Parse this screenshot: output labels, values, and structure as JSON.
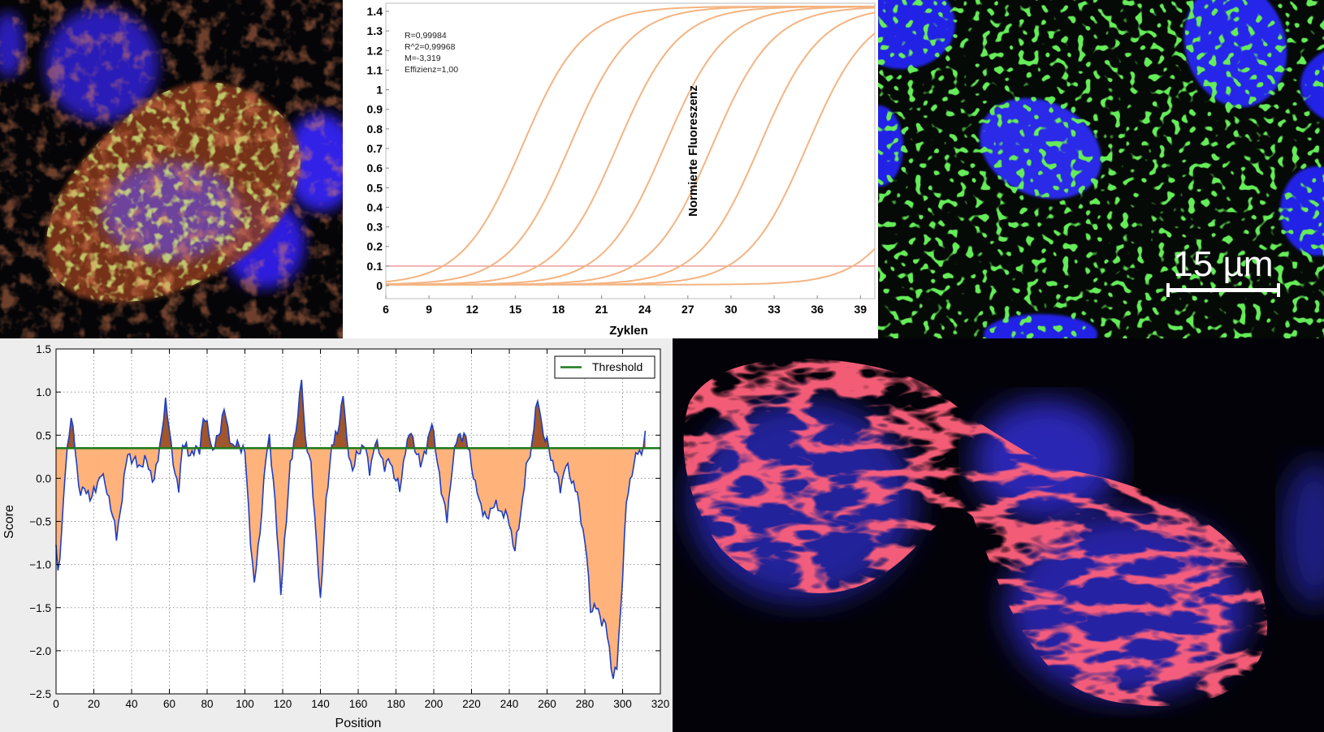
{
  "micrograph_top_left": {
    "colors": {
      "nucleus": "#3a2cf0",
      "actin": "#d0401c",
      "marker": "#9ad030"
    }
  },
  "qpcr_chart": {
    "chart_data": {
      "type": "line",
      "xlabel": "Zyklen",
      "ylabel": "Normierte Fluoreszenz",
      "xlim": [
        6,
        40
      ],
      "ylim": [
        0,
        1.4
      ],
      "xticks": [
        "6",
        "9",
        "12",
        "15",
        "18",
        "21",
        "24",
        "27",
        "30",
        "33",
        "36",
        "39"
      ],
      "yticks": [
        "0",
        "0.1",
        "0.2",
        "0.3",
        "0.4",
        "0.5",
        "0.6",
        "0.7",
        "0.8",
        "0.9",
        "1",
        "1.1",
        "1.2",
        "1.3",
        "1.4"
      ],
      "threshold": 0.1,
      "annotations": [
        "R=0,99984",
        "R^2=0,99968",
        "M=-3,319",
        "Effizienz=1,00"
      ],
      "midpoints": [
        15.5,
        18.8,
        22.1,
        25.4,
        28.7,
        32.0,
        35.3,
        44.0
      ],
      "plateau": 1.42,
      "colors": {
        "curve": "#f4b483",
        "threshold": "#e88a8a"
      }
    }
  },
  "micrograph_top_right": {
    "scale_bar_label": "15 µm",
    "colors": {
      "nucleus": "#2424e6",
      "marker": "#22c818"
    }
  },
  "score_chart": {
    "chart_data": {
      "type": "area",
      "xlabel": "Position",
      "ylabel": "Score",
      "xlim": [
        0,
        320
      ],
      "ylim": [
        -2.5,
        1.5
      ],
      "xticks": [
        "0",
        "20",
        "40",
        "60",
        "80",
        "100",
        "120",
        "140",
        "160",
        "180",
        "200",
        "220",
        "240",
        "260",
        "280",
        "300",
        "320"
      ],
      "yticks": [
        "1.5",
        "1.0",
        "0.5",
        "0.0",
        "−0.5",
        "−1.0",
        "−1.5",
        "−2.0",
        "−2.5"
      ],
      "threshold": 0.35,
      "legend": {
        "label": "Threshold",
        "position": "top-right"
      },
      "grid": true,
      "profile_keypoints": [
        [
          0,
          -0.8
        ],
        [
          1,
          -1.1
        ],
        [
          3,
          -0.6
        ],
        [
          5,
          0.1
        ],
        [
          7,
          0.55
        ],
        [
          8,
          0.75
        ],
        [
          10,
          0.35
        ],
        [
          12,
          -0.1
        ],
        [
          15,
          -0.15
        ],
        [
          18,
          -0.2
        ],
        [
          21,
          -0.15
        ],
        [
          24,
          0.1
        ],
        [
          26,
          -0.1
        ],
        [
          29,
          -0.3
        ],
        [
          32,
          -0.7
        ],
        [
          35,
          -0.2
        ],
        [
          38,
          0.3
        ],
        [
          41,
          0.2
        ],
        [
          44,
          0.15
        ],
        [
          48,
          0.2
        ],
        [
          52,
          -0.05
        ],
        [
          55,
          0.4
        ],
        [
          58,
          0.85
        ],
        [
          60,
          0.6
        ],
        [
          63,
          0.0
        ],
        [
          65,
          -0.1
        ],
        [
          67,
          0.4
        ],
        [
          70,
          0.3
        ],
        [
          73,
          0.3
        ],
        [
          76,
          0.35
        ],
        [
          78,
          0.7
        ],
        [
          81,
          0.55
        ],
        [
          83,
          0.3
        ],
        [
          86,
          0.5
        ],
        [
          89,
          0.8
        ],
        [
          91,
          0.55
        ],
        [
          94,
          0.35
        ],
        [
          97,
          0.4
        ],
        [
          100,
          0.3
        ],
        [
          103,
          -0.7
        ],
        [
          105,
          -1.25
        ],
        [
          108,
          -0.6
        ],
        [
          111,
          0.2
        ],
        [
          113,
          0.5
        ],
        [
          116,
          -0.3
        ],
        [
          119,
          -1.3
        ],
        [
          122,
          -0.5
        ],
        [
          124,
          0.2
        ],
        [
          127,
          0.5
        ],
        [
          130,
          1.2
        ],
        [
          132,
          0.4
        ],
        [
          135,
          0.2
        ],
        [
          137,
          -0.5
        ],
        [
          140,
          -1.4
        ],
        [
          143,
          -0.3
        ],
        [
          146,
          0.4
        ],
        [
          149,
          0.5
        ],
        [
          152,
          1.0
        ],
        [
          154,
          0.4
        ],
        [
          157,
          0.1
        ],
        [
          160,
          0.3
        ],
        [
          163,
          0.4
        ],
        [
          166,
          0.1
        ],
        [
          169,
          0.4
        ],
        [
          172,
          0.3
        ],
        [
          174,
          0.1
        ],
        [
          177,
          0.25
        ],
        [
          179,
          0.0
        ],
        [
          182,
          -0.1
        ],
        [
          185,
          0.3
        ],
        [
          188,
          0.6
        ],
        [
          190,
          0.3
        ],
        [
          193,
          0.2
        ],
        [
          196,
          0.3
        ],
        [
          199,
          0.7
        ],
        [
          201,
          0.3
        ],
        [
          204,
          -0.1
        ],
        [
          207,
          -0.5
        ],
        [
          210,
          0.2
        ],
        [
          213,
          0.5
        ],
        [
          216,
          0.5
        ],
        [
          219,
          0.3
        ],
        [
          222,
          -0.1
        ],
        [
          225,
          -0.3
        ],
        [
          228,
          -0.5
        ],
        [
          231,
          -0.3
        ],
        [
          234,
          -0.35
        ],
        [
          237,
          -0.4
        ],
        [
          240,
          -0.5
        ],
        [
          243,
          -0.85
        ],
        [
          246,
          -0.4
        ],
        [
          249,
          0.1
        ],
        [
          252,
          0.4
        ],
        [
          254,
          0.8
        ],
        [
          256,
          0.85
        ],
        [
          258,
          0.5
        ],
        [
          261,
          0.35
        ],
        [
          264,
          0.1
        ],
        [
          267,
          -0.1
        ],
        [
          270,
          0.15
        ],
        [
          273,
          0.0
        ],
        [
          276,
          -0.2
        ],
        [
          278,
          -0.45
        ],
        [
          281,
          -0.9
        ],
        [
          283,
          -1.5
        ],
        [
          286,
          -1.5
        ],
        [
          288,
          -1.6
        ],
        [
          291,
          -1.7
        ],
        [
          293,
          -2.0
        ],
        [
          295,
          -2.3
        ],
        [
          297,
          -2.2
        ],
        [
          299,
          -1.5
        ],
        [
          302,
          -0.3
        ],
        [
          305,
          0.1
        ],
        [
          308,
          0.3
        ],
        [
          310,
          0.3
        ],
        [
          312,
          0.55
        ]
      ],
      "colors": {
        "line": "#1f3fbf",
        "fill_below": "#ffb27a",
        "fill_above": "#a0562a",
        "threshold": "#1d7a1d"
      }
    }
  },
  "micrograph_bottom_right": {
    "colors": {
      "nucleus": "#2a28b0",
      "tubulin": "#ff2030"
    }
  }
}
